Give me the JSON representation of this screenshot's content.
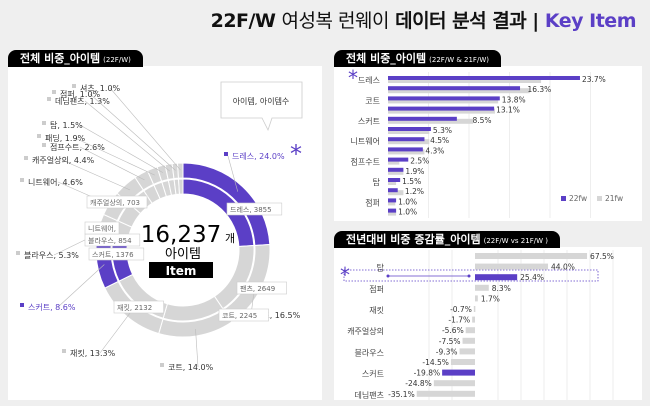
{
  "header": {
    "title_bold": "22F/W",
    "title_light": "여성복 런웨이",
    "title_bold2": "데이터 분석 결과 |",
    "title_accent": "Key Item"
  },
  "colors": {
    "accent": "#5b3fc6",
    "grey": "#d6d6d6"
  },
  "panel1": {
    "title": "전체 비중_아이템",
    "subtitle": "(22F/W)",
    "callout": "아이템, 아이템수",
    "total": "16,237",
    "total_unit": "개",
    "total_label": "아이템",
    "badge": "Item",
    "star": "*"
  },
  "chart_data": [
    {
      "type": "pie",
      "title": "전체 비중_아이템 (22F/W)",
      "slices": [
        {
          "label": "드레스",
          "pct": 24.0,
          "count": 3855,
          "highlight": true,
          "outer": "드레스, 24.0%",
          "inner": "드레스, 3855"
        },
        {
          "label": "팬츠",
          "pct": 16.5,
          "count": 2649,
          "highlight": false,
          "outer": "팬츠, 16.5%",
          "inner": "팬츠, 2649"
        },
        {
          "label": "코트",
          "pct": 14.0,
          "count": 2245,
          "highlight": false,
          "outer": "코트, 14.0%",
          "inner": "코트, 2245"
        },
        {
          "label": "재킷",
          "pct": 13.3,
          "count": 2132,
          "highlight": false,
          "outer": "재킷, 13.3%",
          "inner": "재킷, 2132"
        },
        {
          "label": "스커트",
          "pct": 8.6,
          "count": 1376,
          "highlight": true,
          "outer": "스커트, 8.6%",
          "inner": "스커트, 1376"
        },
        {
          "label": "블라우스",
          "pct": 5.3,
          "count": 854,
          "highlight": false,
          "outer": "블라우스, 5.3%",
          "inner": "블라우스, 854"
        },
        {
          "label": "니트웨어",
          "pct": 4.6,
          "highlight": false,
          "outer": "니트웨어, 4.6%",
          "inner": "니트웨어,"
        },
        {
          "label": "캐주얼상의",
          "pct": 4.4,
          "count": 703,
          "highlight": false,
          "outer": "캐주얼상의, 4.4%",
          "inner": "캐주얼상의, 703"
        },
        {
          "label": "점프수트",
          "pct": 2.6,
          "highlight": false,
          "outer": "점프수트, 2.6%"
        },
        {
          "label": "패딩",
          "pct": 1.9,
          "highlight": false,
          "outer": "패딩, 1.9%"
        },
        {
          "label": "탑",
          "pct": 1.5,
          "highlight": false,
          "outer": "탑, 1.5%"
        },
        {
          "label": "데님팬츠",
          "pct": 1.3,
          "highlight": false,
          "outer": "데님팬츠, 1.3%"
        },
        {
          "label": "점퍼",
          "pct": 1.0,
          "highlight": false,
          "outer": "점퍼, 1.0%"
        },
        {
          "label": "셔츠",
          "pct": 1.0,
          "highlight": false,
          "outer": "셔츠, 1.0%"
        }
      ]
    },
    {
      "type": "bar",
      "title": "전체 비중_아이템",
      "subtitle": "(22F/W & 21F/W)",
      "categories": [
        "드레스",
        "",
        "코트",
        "",
        "스커트",
        "",
        "니트웨어",
        "",
        "점프수트",
        "",
        "탑",
        "",
        "점퍼",
        ""
      ],
      "series": [
        {
          "name": "22fw",
          "values": [
            23.7,
            16.3,
            13.8,
            13.1,
            8.5,
            5.3,
            4.5,
            4.3,
            2.5,
            1.9,
            1.5,
            1.2,
            1.0,
            1.0
          ]
        },
        {
          "name": "21fw",
          "values": [
            18.9,
            17.5,
            13.6,
            13.2,
            10.5,
            5.1,
            5.1,
            4.5,
            1.4,
            1.9,
            1.0,
            1.9,
            0.9,
            1.0
          ]
        }
      ],
      "data_labels": [
        "23.7%",
        "16.3%",
        "13.8%",
        "13.1%",
        "8.5%",
        "5.3%",
        "4.5%",
        "4.3%",
        "2.5%",
        "1.9%",
        "1.5%",
        "1.2%",
        "1.0%",
        "1.0%"
      ],
      "legend": [
        "22fw",
        "21fw"
      ],
      "legend_position": "bottom-right",
      "highlight_index": 0
    },
    {
      "type": "bar",
      "title": "전년대비 비중 증감률_아이템",
      "subtitle": "(22F/W vs 21F/W )",
      "categories": [
        "",
        "탑",
        "",
        "점퍼",
        "",
        "재킷",
        "",
        "캐주얼상의",
        "",
        "블라우스",
        "",
        "스커트",
        "",
        "데님팬츠"
      ],
      "values": [
        67.5,
        44.0,
        25.4,
        8.3,
        1.7,
        -0.7,
        -1.7,
        -5.6,
        -7.5,
        -9.3,
        -14.5,
        -19.8,
        -24.8,
        -35.1
      ],
      "data_labels": [
        "67.5%",
        "44.0%",
        "25.4%",
        "8.3%",
        "1.7%",
        "-0.7%",
        "-1.7%",
        "-5.6%",
        "-7.5%",
        "-9.3%",
        "-14.5%",
        "-19.8%",
        "-24.8%",
        "-35.1%"
      ],
      "highlight": [
        2,
        11
      ]
    }
  ]
}
